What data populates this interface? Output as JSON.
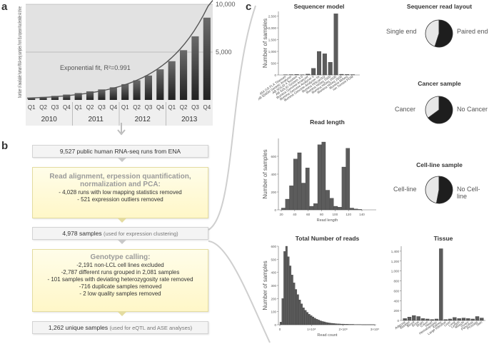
{
  "panels": {
    "a": "a",
    "b": "b",
    "c": "c"
  },
  "colors": {
    "bar_dark": "#3d3d3d",
    "bar_light": "#bdbdbd",
    "curve": "#555555",
    "yellow_box": "#fff7c8",
    "gray_box": "#f4f4f4"
  },
  "chart_a": {
    "type": "bar",
    "ylabel": "Number of available human RNA-seq samples from European Nucleotide Archive",
    "y_ticks": [
      "10,000",
      "5,000"
    ],
    "ylim": [
      0,
      10000
    ],
    "quarters": [
      "Q1",
      "Q2",
      "Q3",
      "Q4",
      "Q1",
      "Q2",
      "Q3",
      "Q4",
      "Q1",
      "Q2",
      "Q3",
      "Q4",
      "Q1",
      "Q2",
      "Q3",
      "Q4"
    ],
    "years": [
      "2010",
      "2011",
      "2012",
      "2013"
    ],
    "values": [
      200,
      310,
      420,
      560,
      720,
      900,
      1100,
      1320,
      1650,
      2050,
      2550,
      3200,
      4050,
      5200,
      6650,
      8600
    ],
    "fit_label": "Exponential fit, R²=0.991"
  },
  "flow": {
    "box1": "9,527 public human RNA-seq runs from ENA",
    "box2": {
      "head": "Read alignment, erpession quantification, normalization and PCA:",
      "lines": [
        "- 4,028 runs with low mapping statistics removed",
        "- 521 expression outliers removed"
      ]
    },
    "box3": {
      "main": "4,978 samples",
      "note": "(used for expression clustering)"
    },
    "box4": {
      "head": "Genotype calling:",
      "lines": [
        "-2,191 non-LCL cell lines excluded",
        "-2,787 different runs grouped in 2,081 samples",
        "- 101 samples with deviating heterozygosity rate removed",
        "-716 duplicate samples removed",
        "- 2 low quality samples removed"
      ]
    },
    "box5": {
      "main": "1,262 unique samples",
      "note": "(used for eQTL and ASE analyses)"
    }
  },
  "chart_data": [
    {
      "type": "bar",
      "title": "Sequencer model",
      "ylabel": "Number of samples",
      "categories": [
        "454 GS FLX Titanium",
        "AB 5500xl Genetic Analyzer",
        "AB SOLiD 4 System",
        "AB SOLiD System 3.0",
        "Illumina Genome Analyzer",
        "Illumina Genome Analyzer II",
        "Illumina Genome Analyzer IIx",
        "Illumina HiScanSQ",
        "Illumina HiSeq 1000",
        "Illumina HiSeq 2000",
        "Illumina HiSeq 2500",
        "Illumina MiSeq",
        "Ion Torrent PGM"
      ],
      "values": [
        10,
        15,
        20,
        10,
        35,
        280,
        1000,
        900,
        540,
        2600,
        30,
        20,
        15
      ],
      "y_ticks": [
        "0",
        "500",
        "1,000",
        "1,500",
        "2,000",
        "2,500"
      ],
      "ylim": [
        0,
        2700
      ]
    },
    {
      "type": "pie",
      "title": "Sequencer read layout",
      "labels": [
        "Single end",
        "Paired end"
      ],
      "values": [
        45,
        55
      ]
    },
    {
      "type": "pie",
      "title": "Cancer sample",
      "labels": [
        "Cancer",
        "No Cancer"
      ],
      "values": [
        35,
        65
      ]
    },
    {
      "type": "bar",
      "title": "Read length",
      "ylabel": "Number of samples",
      "xlabel": "Read length",
      "x": [
        25,
        30,
        35,
        40,
        45,
        50,
        55,
        60,
        65,
        70,
        75,
        80,
        85,
        90,
        95,
        100,
        105,
        110,
        115,
        120
      ],
      "values": [
        20,
        120,
        270,
        570,
        640,
        300,
        470,
        40,
        70,
        730,
        760,
        220,
        130,
        40,
        30,
        480,
        690,
        20,
        10,
        5
      ],
      "x_ticks": [
        "20",
        "40",
        "60",
        "80",
        "100",
        "120",
        "140"
      ],
      "y_ticks": [
        "0",
        "200",
        "400",
        "600"
      ],
      "xlim": [
        20,
        140
      ],
      "ylim": [
        0,
        800
      ]
    },
    {
      "type": "pie",
      "title": "Cell-line sample",
      "labels": [
        "Cell-line",
        "No Cell-line"
      ],
      "values": [
        47,
        53
      ]
    },
    {
      "type": "bar",
      "title": "Total Number of reads",
      "ylabel": "Number of samples",
      "xlabel": "Read count",
      "values": [
        20,
        200,
        560,
        600,
        520,
        450,
        380,
        320,
        270,
        230,
        190,
        160,
        130,
        110,
        95,
        80,
        70,
        60,
        50,
        42,
        36,
        30,
        25,
        22,
        18,
        15,
        13,
        11,
        10,
        8,
        7,
        6,
        5,
        5,
        4,
        4,
        3,
        3,
        3,
        2,
        2,
        2,
        2,
        1,
        1,
        1,
        1,
        1,
        1,
        1
      ],
      "x_ticks": [
        "0",
        "1×10⁸",
        "2×10⁸",
        "3×10⁸"
      ],
      "y_ticks": [
        "0",
        "100",
        "200",
        "300",
        "400",
        "500",
        "600"
      ],
      "ylim": [
        0,
        600
      ]
    },
    {
      "type": "bar",
      "title": "Tissue",
      "categories": [
        "Adipose",
        "Bladder",
        "Blood",
        "Bone",
        "Brain",
        "Colon",
        "Heart",
        "Hematopoietic",
        "Kidney",
        "Large Intestine",
        "Liver",
        "Lung",
        "Lymph",
        "Muscle",
        "Ovary",
        "Pancreas",
        "Prostate",
        "Skin"
      ],
      "values": [
        40,
        70,
        100,
        80,
        40,
        30,
        20,
        30,
        1450,
        20,
        30,
        60,
        40,
        50,
        40,
        30,
        80,
        50
      ],
      "y_ticks": [
        "0",
        "200",
        "400",
        "600",
        "800",
        "1,000",
        "1,200",
        "1,400"
      ],
      "ylim": [
        0,
        1500
      ]
    }
  ]
}
